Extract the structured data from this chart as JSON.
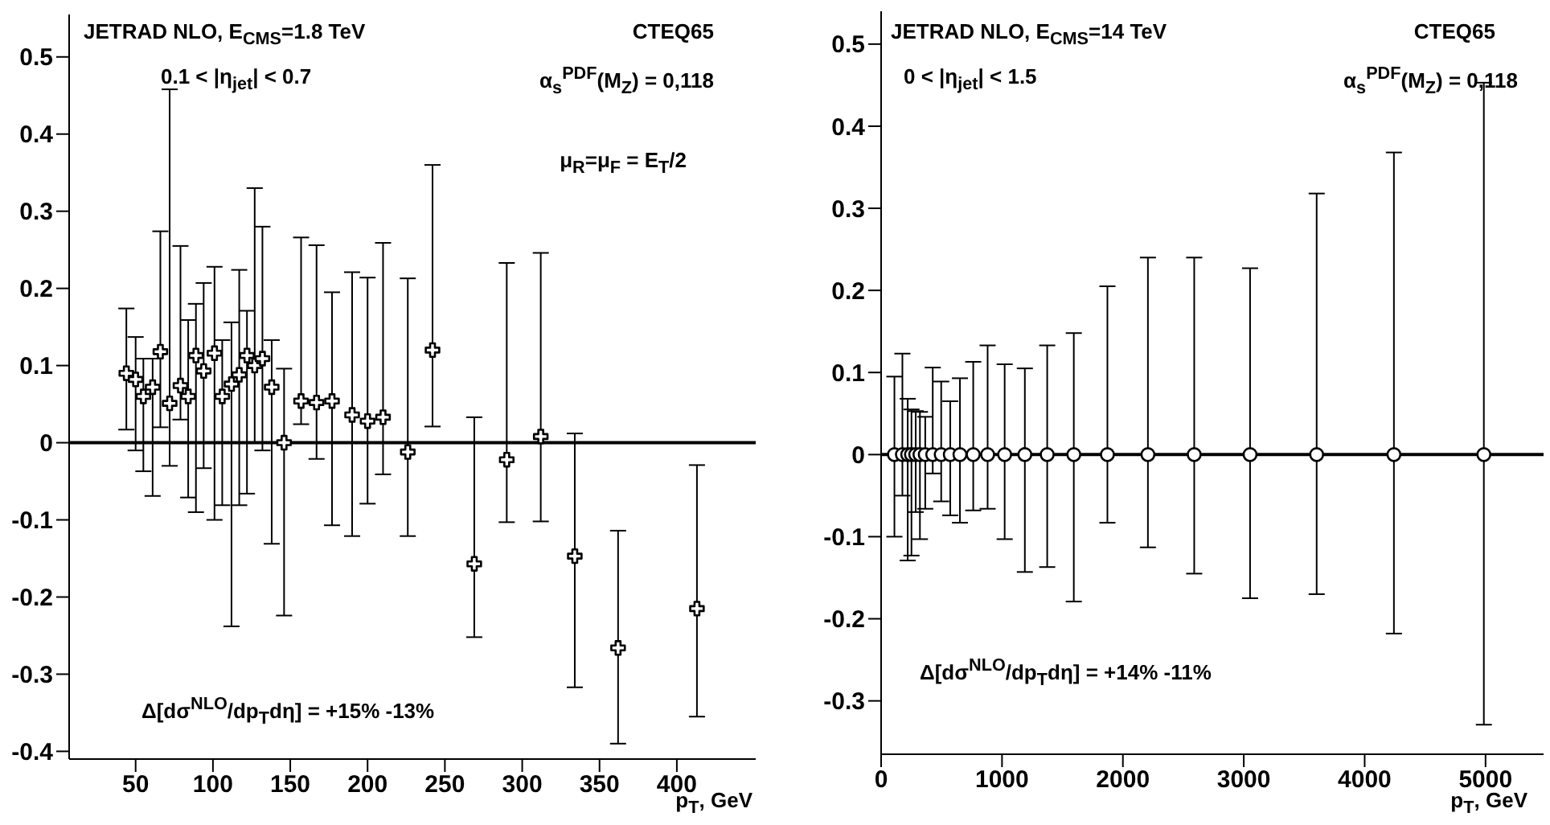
{
  "chart_data": [
    {
      "type": "scatter",
      "xlabel": "p$_{T}$, GeV",
      "marker": "cross",
      "annotations": [
        "JETRAD NLO, E$_{CMS}$=1.8 TeV",
        "CTEQ65",
        "0.1 < |η$_{jet}$| < 0.7",
        "α$_{s}$$^{PDF}$(M$_{Z}$) = 0,118",
        "μ$_{R}$=μ$_{F}$ = E$_{T}$/2",
        "Δ[dσ$^{NLO}$/dp$_{T}$dη] = +15% -13%"
      ],
      "x": [
        44,
        50,
        55,
        61,
        66,
        72,
        79,
        84,
        89,
        94,
        101,
        106,
        112,
        117,
        122,
        127,
        132,
        138,
        146,
        157,
        167,
        177,
        190,
        200,
        210,
        226,
        242,
        269,
        290,
        312,
        334,
        362,
        413
      ],
      "series": [
        {
          "color": "#000000",
          "values": [
            0.09,
            0.082,
            0.06,
            0.072,
            0.118,
            0.051,
            0.074,
            0.06,
            0.113,
            0.093,
            0.116,
            0.06,
            0.076,
            0.088,
            0.113,
            0.1,
            0.109,
            0.072,
            0.0,
            0.054,
            0.052,
            0.054,
            0.036,
            0.028,
            0.033,
            -0.012,
            0.12,
            -0.157,
            -0.022,
            0.008,
            -0.147,
            -0.266,
            -0.215
          ],
          "errors": [
            [
              0.017,
              0.174
            ],
            [
              -0.01,
              0.137
            ],
            [
              -0.037,
              0.109
            ],
            [
              -0.069,
              0.109
            ],
            [
              0.02,
              0.274
            ],
            [
              -0.03,
              0.458
            ],
            [
              0.03,
              0.255
            ],
            [
              -0.071,
              0.159
            ],
            [
              -0.09,
              0.18
            ],
            [
              -0.033,
              0.207
            ],
            [
              -0.1,
              0.228
            ],
            [
              -0.081,
              0.133
            ],
            [
              -0.238,
              0.156
            ],
            [
              -0.081,
              0.224
            ],
            [
              -0.066,
              0.171
            ],
            [
              0.0,
              0.33
            ],
            [
              -0.01,
              0.28
            ],
            [
              -0.131,
              0.133
            ],
            [
              -0.224,
              0.096
            ],
            [
              0.024,
              0.266
            ],
            [
              -0.021,
              0.256
            ],
            [
              -0.107,
              0.195
            ],
            [
              -0.121,
              0.221
            ],
            [
              -0.079,
              0.214
            ],
            [
              -0.041,
              0.259
            ],
            [
              -0.121,
              0.213
            ],
            [
              0.021,
              0.36
            ],
            [
              -0.252,
              0.033
            ],
            [
              -0.103,
              0.233
            ],
            [
              -0.102,
              0.246
            ],
            [
              -0.317,
              0.012
            ],
            [
              -0.39,
              -0.114
            ],
            [
              -0.355,
              -0.029
            ]
          ]
        }
      ],
      "xlim": [
        7,
        451
      ],
      "xticks": [
        50,
        100,
        150,
        200,
        250,
        300,
        350,
        400
      ],
      "ylim": [
        -0.41,
        0.555
      ],
      "yticks": [
        -0.4,
        -0.3,
        -0.2,
        -0.1,
        0,
        0.1,
        0.2,
        0.3,
        0.4,
        0.5
      ],
      "ref_lines": [
        {
          "axis": "y",
          "value": 0,
          "color": "#000000"
        }
      ]
    },
    {
      "type": "scatter",
      "xlabel": "p$_{T}$, GeV",
      "marker": "circle",
      "annotations": [
        "JETRAD NLO, E$_{CMS}$=14 TeV",
        "CTEQ65",
        "0 < |η$_{jet}$| < 1.5",
        "α$_{s}$$^{PDF}$(M$_{Z}$) = 0,118",
        "Δ[dσ$^{NLO}$/dp$_{T}$dη] = +14% -11%"
      ],
      "x": [
        110,
        176,
        220,
        251,
        286,
        321,
        365,
        427,
        497,
        572,
        652,
        762,
        881,
        1022,
        1189,
        1374,
        1594,
        1872,
        2207,
        2590,
        3052,
        3603,
        4242,
        4986
      ],
      "series": [
        {
          "color": "#000000",
          "values": [
            0,
            0,
            0,
            0,
            0,
            0,
            0,
            0,
            0,
            0,
            0,
            0,
            0,
            0,
            0,
            0,
            0,
            0,
            0,
            0,
            0,
            0,
            0,
            0
          ],
          "errors": [
            [
              -0.1,
              0.095
            ],
            [
              -0.05,
              0.123
            ],
            [
              -0.129,
              0.068
            ],
            [
              -0.123,
              0.055
            ],
            [
              -0.07,
              0.053
            ],
            [
              -0.103,
              0.052
            ],
            [
              -0.066,
              0.046
            ],
            [
              -0.023,
              0.106
            ],
            [
              -0.057,
              0.089
            ],
            [
              -0.074,
              0.065
            ],
            [
              -0.083,
              0.093
            ],
            [
              -0.068,
              0.113
            ],
            [
              -0.066,
              0.133
            ],
            [
              -0.103,
              0.11
            ],
            [
              -0.143,
              0.105
            ],
            [
              -0.137,
              0.133
            ],
            [
              -0.179,
              0.148
            ],
            [
              -0.083,
              0.205
            ],
            [
              -0.113,
              0.24
            ],
            [
              -0.145,
              0.24
            ],
            [
              -0.175,
              0.227
            ],
            [
              -0.17,
              0.318
            ],
            [
              -0.218,
              0.368
            ],
            [
              -0.329,
              0.453
            ]
          ]
        }
      ],
      "xlim": [
        0,
        5480
      ],
      "xticks": [
        0,
        1000,
        2000,
        3000,
        4000,
        5000
      ],
      "ylim": [
        -0.365,
        0.54
      ],
      "yticks": [
        -0.3,
        -0.2,
        -0.1,
        0,
        0.1,
        0.2,
        0.3,
        0.4,
        0.5
      ],
      "ref_lines": [
        {
          "axis": "y",
          "value": 0,
          "color": "#000000"
        }
      ]
    }
  ]
}
